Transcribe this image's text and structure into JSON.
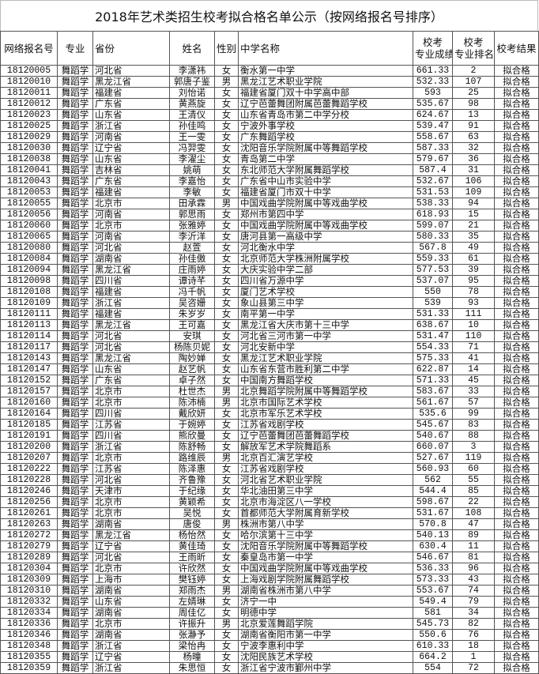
{
  "title": "2018年艺术类招生校考拟合格名单公示（按网络报名号排序）",
  "headers": {
    "id": "网络报名号",
    "major": "专业",
    "province": "省份",
    "name": "姓名",
    "gender": "性别",
    "school": "中学名称",
    "score_l1": "校考",
    "score_l2": "专业成绩",
    "rank_l1": "校考",
    "rank_l2": "专业排名",
    "result": "校考结果"
  },
  "rows": [
    {
      "id": "18120005",
      "major": "舞蹈学",
      "province": "河北省",
      "name": "李潇祎",
      "gender": "女",
      "school": "衡水第一中学",
      "score": "661.33",
      "rank": "2",
      "result": "拟合格"
    },
    {
      "id": "18120010",
      "major": "舞蹈学",
      "province": "黑龙江省",
      "name": "郭唐子鉴",
      "gender": "男",
      "school": "黑龙江艺术职业学院",
      "score": "532.33",
      "rank": "107",
      "result": "拟合格"
    },
    {
      "id": "18120011",
      "major": "舞蹈学",
      "province": "福建省",
      "name": "刘怡诺",
      "gender": "女",
      "school": "福建省厦门双十中学高中部",
      "score": "593",
      "rank": "25",
      "result": "拟合格"
    },
    {
      "id": "18120012",
      "major": "舞蹈学",
      "province": "广东省",
      "name": "黄燕旋",
      "gender": "女",
      "school": "辽宁芭蕾舞团附属芭蕾舞蹈学校",
      "score": "535.67",
      "rank": "98",
      "result": "拟合格"
    },
    {
      "id": "18120023",
      "major": "舞蹈学",
      "province": "山东省",
      "name": "王清仪",
      "gender": "女",
      "school": "山东省青岛市第二中学分校",
      "score": "624.67",
      "rank": "13",
      "result": "拟合格"
    },
    {
      "id": "18120025",
      "major": "舞蹈学",
      "province": "浙江省",
      "name": "孙佳鸣",
      "gender": "女",
      "school": "宁波外事学校",
      "score": "539.47",
      "rank": "91",
      "result": "拟合格"
    },
    {
      "id": "18120029",
      "major": "舞蹈学",
      "province": "河南省",
      "name": "王一雯",
      "gender": "女",
      "school": "广东舞蹈学校",
      "score": "558.67",
      "rank": "63",
      "result": "拟合格"
    },
    {
      "id": "18120030",
      "major": "舞蹈学",
      "province": "辽宁省",
      "name": "冯羿雯",
      "gender": "女",
      "school": "沈阳音乐学院附属中等舞蹈学校",
      "score": "587.33",
      "rank": "32",
      "result": "拟合格"
    },
    {
      "id": "18120038",
      "major": "舞蹈学",
      "province": "山东省",
      "name": "李濯尘",
      "gender": "女",
      "school": "青岛第二中学",
      "score": "579.67",
      "rank": "36",
      "result": "拟合格"
    },
    {
      "id": "18120041",
      "major": "舞蹈学",
      "province": "吉林省",
      "name": "姚萌",
      "gender": "女",
      "school": "东北师范大学附属舞蹈学校",
      "score": "587.4",
      "rank": "31",
      "result": "拟合格"
    },
    {
      "id": "18120043",
      "major": "舞蹈学",
      "province": "广东省",
      "name": "李嘉怡",
      "gender": "女",
      "school": "广东省中山市实验中学",
      "score": "532.67",
      "rank": "106",
      "result": "拟合格"
    },
    {
      "id": "18120053",
      "major": "舞蹈学",
      "province": "福建省",
      "name": "李敏",
      "gender": "女",
      "school": "福建省厦门市双十中学",
      "score": "531.53",
      "rank": "109",
      "result": "拟合格"
    },
    {
      "id": "18120055",
      "major": "舞蹈学",
      "province": "北京市",
      "name": "田承霖",
      "gender": "男",
      "school": "中国戏曲学院附属中等戏曲学校",
      "score": "538.33",
      "rank": "94",
      "result": "拟合格"
    },
    {
      "id": "18120056",
      "major": "舞蹈学",
      "province": "河南省",
      "name": "郭思雨",
      "gender": "女",
      "school": "郑州市第四中学",
      "score": "618.93",
      "rank": "15",
      "result": "拟合格"
    },
    {
      "id": "18120060",
      "major": "舞蹈学",
      "province": "北京市",
      "name": "张雅婷",
      "gender": "女",
      "school": "中国戏曲学院附属中等戏曲学校",
      "score": "599.07",
      "rank": "21",
      "result": "拟合格"
    },
    {
      "id": "18120065",
      "major": "舞蹈学",
      "province": "河南省",
      "name": "李沂洋",
      "gender": "女",
      "school": "唐河县第一高级中学",
      "score": "580.33",
      "rank": "35",
      "result": "拟合格"
    },
    {
      "id": "18120080",
      "major": "舞蹈学",
      "province": "河北省",
      "name": "赵萱",
      "gender": "女",
      "school": "河北衡水中学",
      "score": "567.8",
      "rank": "49",
      "result": "拟合格"
    },
    {
      "id": "18120084",
      "major": "舞蹈学",
      "province": "湖南省",
      "name": "孙佳傲",
      "gender": "女",
      "school": "北京师范大学株洲附属学校",
      "score": "559.33",
      "rank": "61",
      "result": "拟合格"
    },
    {
      "id": "18120094",
      "major": "舞蹈学",
      "province": "黑龙江省",
      "name": "庄雨婷",
      "gender": "女",
      "school": "大庆实验中学二部",
      "score": "577.53",
      "rank": "39",
      "result": "拟合格"
    },
    {
      "id": "18120098",
      "major": "舞蹈学",
      "province": "四川省",
      "name": "谭诗芊",
      "gender": "女",
      "school": "四川省万源中学",
      "score": "537.07",
      "rank": "95",
      "result": "拟合格"
    },
    {
      "id": "18120108",
      "major": "舞蹈学",
      "province": "福建省",
      "name": "冯千帆",
      "gender": "女",
      "school": "厦门艺术学校",
      "score": "550",
      "rank": "78",
      "result": "拟合格"
    },
    {
      "id": "18120109",
      "major": "舞蹈学",
      "province": "浙江省",
      "name": "吴咨姗",
      "gender": "女",
      "school": "象山县第三中学",
      "score": "539",
      "rank": "93",
      "result": "拟合格"
    },
    {
      "id": "18120111",
      "major": "舞蹈学",
      "province": "福建省",
      "name": "朱岁岁",
      "gender": "女",
      "school": "南平第一中学",
      "score": "531.33",
      "rank": "111",
      "result": "拟合格"
    },
    {
      "id": "18120113",
      "major": "舞蹈学",
      "province": "黑龙江省",
      "name": "王可嘉",
      "gender": "女",
      "school": "黑龙江省大庆市第十三中学",
      "score": "638.67",
      "rank": "10",
      "result": "拟合格"
    },
    {
      "id": "18120114",
      "major": "舞蹈学",
      "province": "河北省",
      "name": "安琪",
      "gender": "女",
      "school": "河北省三河市第一中学",
      "score": "531.47",
      "rank": "110",
      "result": "拟合格"
    },
    {
      "id": "18120117",
      "major": "舞蹈学",
      "province": "河北省",
      "name": "杨陈贝妮",
      "gender": "女",
      "school": "河北安新中学",
      "score": "554.33",
      "rank": "71",
      "result": "拟合格"
    },
    {
      "id": "18120143",
      "major": "舞蹈学",
      "province": "黑龙江省",
      "name": "陶妙婵",
      "gender": "女",
      "school": "黑龙江艺术职业学院",
      "score": "575.33",
      "rank": "41",
      "result": "拟合格"
    },
    {
      "id": "18120147",
      "major": "舞蹈学",
      "province": "山东省",
      "name": "赵艺帆",
      "gender": "女",
      "school": "山东省东营市胜利第二中学",
      "score": "622.87",
      "rank": "14",
      "result": "拟合格"
    },
    {
      "id": "18120152",
      "major": "舞蹈学",
      "province": "广东省",
      "name": "卓子然",
      "gender": "女",
      "school": "中国南方舞蹈学校",
      "score": "571.33",
      "rank": "45",
      "result": "拟合格"
    },
    {
      "id": "18120157",
      "major": "舞蹈学",
      "province": "北京市",
      "name": "杜世杰",
      "gender": "男",
      "school": "北京舞蹈学院附属中等舞蹈学校",
      "score": "583.67",
      "rank": "33",
      "result": "拟合格"
    },
    {
      "id": "18120160",
      "major": "舞蹈学",
      "province": "北京市",
      "name": "陈沛楠",
      "gender": "男",
      "school": "北京市国际艺术学校",
      "score": "561.67",
      "rank": "57",
      "result": "拟合格"
    },
    {
      "id": "18120164",
      "major": "舞蹈学",
      "province": "四川省",
      "name": "戴欣妍",
      "gender": "女",
      "school": "北京市军乐艺术学校",
      "score": "535.6",
      "rank": "99",
      "result": "拟合格"
    },
    {
      "id": "18120185",
      "major": "舞蹈学",
      "province": "江苏省",
      "name": "于婉婷",
      "gender": "女",
      "school": "江苏省戏剧学校",
      "score": "545.67",
      "rank": "83",
      "result": "拟合格"
    },
    {
      "id": "18120191",
      "major": "舞蹈学",
      "province": "四川省",
      "name": "熊欣曼",
      "gender": "女",
      "school": "辽宁芭蕾舞团芭蕾舞蹈学校",
      "score": "540.67",
      "rank": "88",
      "result": "拟合格"
    },
    {
      "id": "18120200",
      "major": "舞蹈学",
      "province": "浙江省",
      "name": "陈舒畅",
      "gender": "女",
      "school": "解放军艺术学院舞蹈系",
      "score": "660.07",
      "rank": "3",
      "result": "拟合格"
    },
    {
      "id": "18120207",
      "major": "舞蹈学",
      "province": "北京市",
      "name": "路维辰",
      "gender": "男",
      "school": "北京百汇演艺学校",
      "score": "527.67",
      "rank": "119",
      "result": "拟合格"
    },
    {
      "id": "18120222",
      "major": "舞蹈学",
      "province": "江苏省",
      "name": "陈泽惠",
      "gender": "女",
      "school": "江苏省戏剧学校",
      "score": "560.93",
      "rank": "60",
      "result": "拟合格"
    },
    {
      "id": "18120228",
      "major": "舞蹈学",
      "province": "河北省",
      "name": "齐鲁豫",
      "gender": "女",
      "school": "河北省艺术职业学院",
      "score": "562",
      "rank": "55",
      "result": "拟合格"
    },
    {
      "id": "18120246",
      "major": "舞蹈学",
      "province": "天津市",
      "name": "于纪缘",
      "gender": "女",
      "school": "华北油田第三中学",
      "score": "544.4",
      "rank": "85",
      "result": "拟合格"
    },
    {
      "id": "18120256",
      "major": "舞蹈学",
      "province": "北京市",
      "name": "黄颖希",
      "gender": "女",
      "school": "北京市海淀区八一学校",
      "score": "598.67",
      "rank": "22",
      "result": "拟合格"
    },
    {
      "id": "18120261",
      "major": "舞蹈学",
      "province": "北京市",
      "name": "吴悦",
      "gender": "女",
      "school": "首都师范大学附属育新学校",
      "score": "531.67",
      "rank": "108",
      "result": "拟合格"
    },
    {
      "id": "18120263",
      "major": "舞蹈学",
      "province": "湖南省",
      "name": "唐俊",
      "gender": "男",
      "school": "株洲市第八中学",
      "score": "570.8",
      "rank": "47",
      "result": "拟合格"
    },
    {
      "id": "18120272",
      "major": "舞蹈学",
      "province": "黑龙江省",
      "name": "杨怡然",
      "gender": "女",
      "school": "哈尔滨第十三中学",
      "score": "540.13",
      "rank": "89",
      "result": "拟合格"
    },
    {
      "id": "18120279",
      "major": "舞蹈学",
      "province": "辽宁省",
      "name": "黄佳琦",
      "gender": "女",
      "school": "沈阳音乐学院附属中等舞蹈学校",
      "score": "630.4",
      "rank": "11",
      "result": "拟合格"
    },
    {
      "id": "18120289",
      "major": "舞蹈学",
      "province": "河北省",
      "name": "王雨昕",
      "gender": "女",
      "school": "秦皇岛市第一中学",
      "score": "546.67",
      "rank": "81",
      "result": "拟合格"
    },
    {
      "id": "18120304",
      "major": "舞蹈学",
      "province": "北京市",
      "name": "许欣然",
      "gender": "女",
      "school": "中国戏曲学院附属中等戏曲学校",
      "score": "536.33",
      "rank": "96",
      "result": "拟合格"
    },
    {
      "id": "18120309",
      "major": "舞蹈学",
      "province": "上海市",
      "name": "樊钰婷",
      "gender": "女",
      "school": "上海戏剧学院附属舞蹈学校",
      "score": "573.33",
      "rank": "43",
      "result": "拟合格"
    },
    {
      "id": "18120310",
      "major": "舞蹈学",
      "province": "湖南省",
      "name": "郑雨杰",
      "gender": "男",
      "school": "湖南省株洲市第八中学",
      "score": "553.67",
      "rank": "74",
      "result": "拟合格"
    },
    {
      "id": "18120332",
      "major": "舞蹈学",
      "province": "山东省",
      "name": "左婧琳",
      "gender": "女",
      "school": "济宁一中",
      "score": "549.4",
      "rank": "79",
      "result": "拟合格"
    },
    {
      "id": "18120334",
      "major": "舞蹈学",
      "province": "湖南省",
      "name": "周佳亿",
      "gender": "女",
      "school": "明德中学",
      "score": "581",
      "rank": "34",
      "result": "拟合格"
    },
    {
      "id": "18120336",
      "major": "舞蹈学",
      "province": "北京市",
      "name": "许振升",
      "gender": "男",
      "school": "北京爱莲舞蹈学院",
      "score": "545.73",
      "rank": "82",
      "result": "拟合格"
    },
    {
      "id": "18120346",
      "major": "舞蹈学",
      "province": "湖南省",
      "name": "张瀞予",
      "gender": "女",
      "school": "湖南省衡阳市第一中学",
      "score": "550.6",
      "rank": "76",
      "result": "拟合格"
    },
    {
      "id": "18120348",
      "major": "舞蹈学",
      "province": "浙江省",
      "name": "梁怡冉",
      "gender": "女",
      "school": "宁波李惠利中学",
      "score": "610.33",
      "rank": "18",
      "result": "拟合格"
    },
    {
      "id": "18120355",
      "major": "舞蹈学",
      "province": "辽宁省",
      "name": "杨曈",
      "gender": "女",
      "school": "沈阳民族艺术学校",
      "score": "664.2",
      "rank": "1",
      "result": "拟合格"
    },
    {
      "id": "18120359",
      "major": "舞蹈学",
      "province": "浙江省",
      "name": "朱思恒",
      "gender": "女",
      "school": "浙江省宁波市鄞州中学",
      "score": "554",
      "rank": "72",
      "result": "拟合格"
    }
  ]
}
